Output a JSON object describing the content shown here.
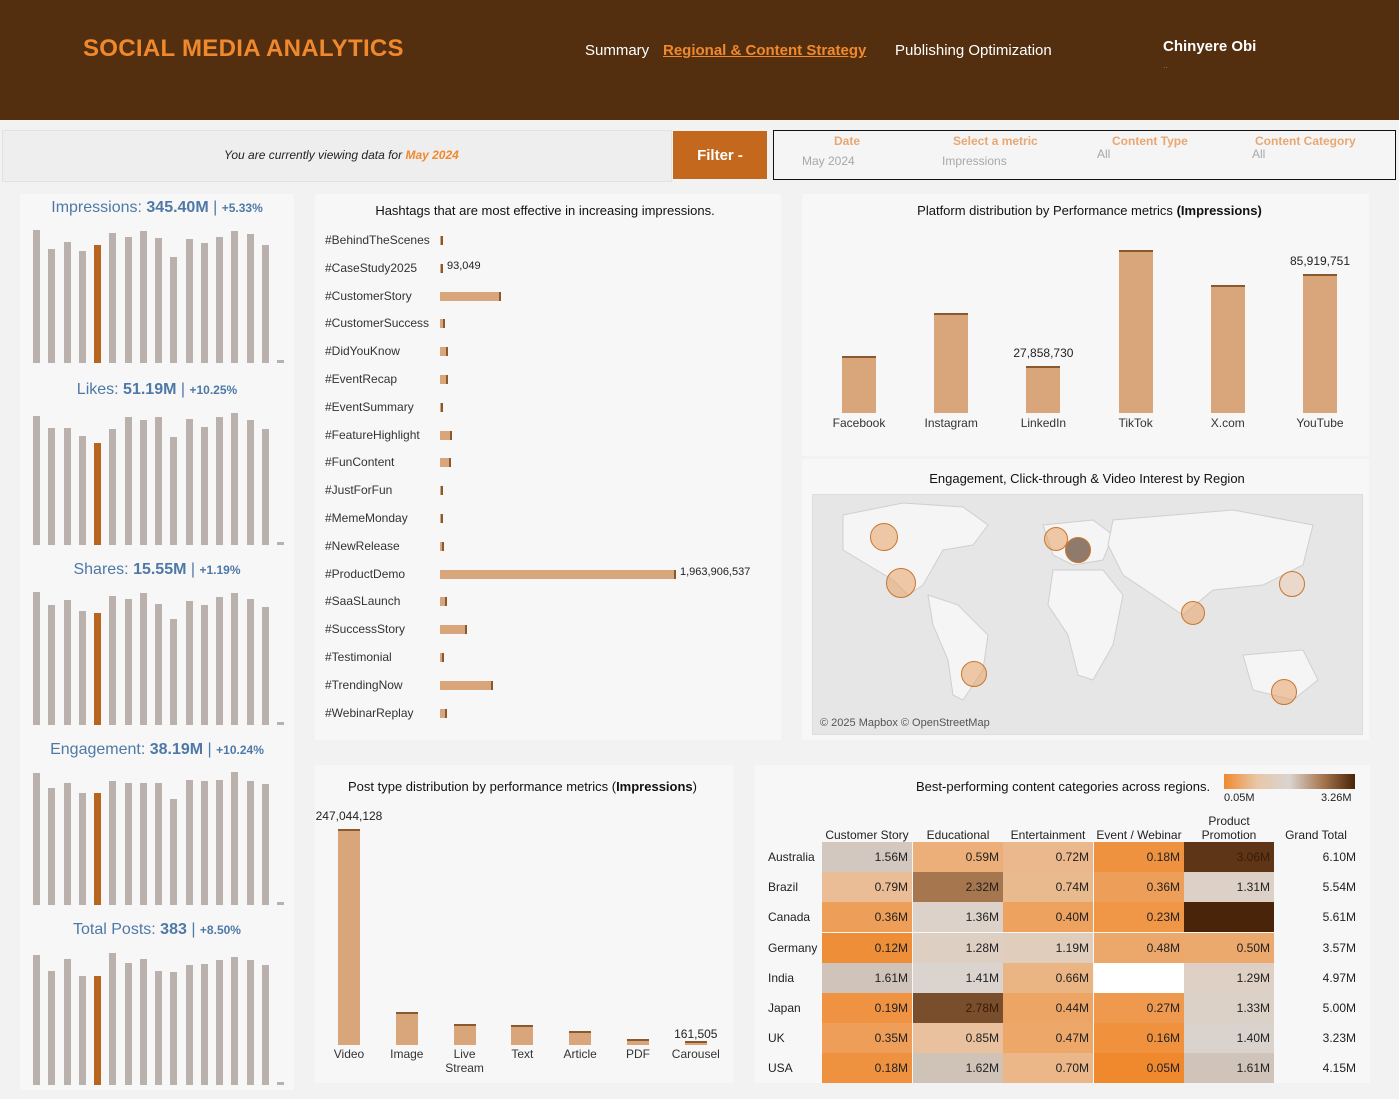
{
  "header": {
    "title": "SOCIAL MEDIA ANALYTICS",
    "nav": [
      "Summary",
      "Regional & Content Strategy",
      "Publishing Optimization"
    ],
    "active_nav": 1,
    "user_name": "Chinyere  Obi",
    "user_sub": ".."
  },
  "filters": {
    "viewing_prefix": "You are currently viewing data for",
    "viewing_period": "May 2024",
    "filter_button": "Filter -",
    "date_label": "Date",
    "date_value": "May 2024",
    "metric_label": "Select a metric",
    "metric_value": "Impressions",
    "content_type_label": "Content Type",
    "content_type_value": "All",
    "content_category_label": "Content Category",
    "content_category_value": "All"
  },
  "kpis": [
    {
      "label": "Impressions:",
      "value": "345.40M",
      "change": "+5.33%",
      "bars": [
        100,
        86,
        91,
        84,
        89,
        98,
        95,
        99,
        94,
        80,
        93,
        90,
        95,
        99,
        97,
        89,
        2
      ],
      "highlight": 4
    },
    {
      "label": "Likes:",
      "value": "51.19M",
      "change": "+10.25%",
      "bars": [
        97,
        88,
        88,
        82,
        77,
        87,
        96,
        94,
        96,
        81,
        95,
        89,
        96,
        99,
        94,
        87,
        2
      ],
      "highlight": 4
    },
    {
      "label": "Shares:",
      "value": "15.55M",
      "change": "+1.19%",
      "bars": [
        100,
        90,
        94,
        86,
        84,
        97,
        95,
        99,
        91,
        80,
        93,
        90,
        96,
        99,
        95,
        89,
        2
      ],
      "highlight": 4
    },
    {
      "label": "Engagement:",
      "value": "38.19M",
      "change": "+10.24%",
      "bars": [
        99,
        88,
        92,
        84,
        84,
        93,
        92,
        92,
        92,
        80,
        94,
        93,
        94,
        100,
        93,
        91,
        2
      ],
      "highlight": 4
    },
    {
      "label": "Total Posts:",
      "value": "383",
      "change": "+8.50%",
      "bars": [
        98,
        86,
        95,
        82,
        82,
        99,
        92,
        95,
        86,
        85,
        90,
        91,
        94,
        96,
        94,
        90,
        2
      ],
      "highlight": 4
    }
  ],
  "hashtags": {
    "title": "Hashtags that are most effective in increasing impressions.",
    "items": [
      {
        "tag": "#BehindTheScenes",
        "value": 2500000,
        "label": ""
      },
      {
        "tag": "#CaseStudy2025",
        "value": 93049,
        "label": "93,049"
      },
      {
        "tag": "#CustomerStory",
        "value": 495000000,
        "label": ""
      },
      {
        "tag": "#CustomerSuccess",
        "value": 24000000,
        "label": ""
      },
      {
        "tag": "#DidYouKnow",
        "value": 48000000,
        "label": ""
      },
      {
        "tag": "#EventRecap",
        "value": 48000000,
        "label": ""
      },
      {
        "tag": "#EventSummary",
        "value": 10000000,
        "label": ""
      },
      {
        "tag": "#FeatureHighlight",
        "value": 82000000,
        "label": ""
      },
      {
        "tag": "#FunContent",
        "value": 78000000,
        "label": ""
      },
      {
        "tag": "#JustForFun",
        "value": 3000000,
        "label": ""
      },
      {
        "tag": "#MemeMonday",
        "value": 12000000,
        "label": ""
      },
      {
        "tag": "#NewRelease",
        "value": 14000000,
        "label": ""
      },
      {
        "tag": "#ProductDemo",
        "value": 1963906537,
        "label": "1,963,906,537"
      },
      {
        "tag": "#SaaSLaunch",
        "value": 45000000,
        "label": ""
      },
      {
        "tag": "#SuccessStory",
        "value": 210000000,
        "label": ""
      },
      {
        "tag": "#Testimonial",
        "value": 14000000,
        "label": ""
      },
      {
        "tag": "#TrendingNow",
        "value": 424000000,
        "label": ""
      },
      {
        "tag": "#WebinarReplay",
        "value": 45000000,
        "label": ""
      }
    ]
  },
  "chart_data": [
    {
      "type": "bar",
      "title": "Platform distribution by Performance metrics",
      "title_bold": "(Impressions)",
      "categories": [
        "Facebook",
        "Instagram",
        "LinkedIn",
        "TikTok",
        "X.com",
        "YouTube"
      ],
      "values": [
        34500000,
        61000000,
        27858730,
        100500000,
        79000000,
        85919751
      ],
      "labels": [
        "",
        "",
        "27,858,730",
        "",
        "",
        "85,919,751"
      ]
    },
    {
      "type": "bar",
      "title": "Post type distribution by performance metrics (",
      "title_bold": "Impressions",
      "title_end": ")",
      "categories": [
        "Video",
        "Image",
        "Live\nStream",
        "Text",
        "Article",
        "PDF",
        "Carousel"
      ],
      "values": [
        247044128,
        36000000,
        21500000,
        20500000,
        13500000,
        4200000,
        161505
      ],
      "labels": [
        "247,044,128",
        "",
        "",
        "",
        "",
        "",
        "161,505"
      ]
    },
    {
      "type": "heatmap",
      "title": "Best-performing content categories across regions.",
      "legend_min": "0.05M",
      "legend_max": "3.26M",
      "columns": [
        "Customer Story",
        "Educational",
        "Entertainment",
        "Event / Webinar",
        "Product\nPromotion",
        "Grand Total"
      ],
      "rows": [
        {
          "region": "Australia",
          "cells": [
            "1.56M",
            "0.59M",
            "0.72M",
            "0.18M",
            "3.06M"
          ],
          "total": "6.10M"
        },
        {
          "region": "Brazil",
          "cells": [
            "0.79M",
            "2.32M",
            "0.74M",
            "0.36M",
            "1.31M"
          ],
          "total": "5.54M"
        },
        {
          "region": "Canada",
          "cells": [
            "0.36M",
            "1.36M",
            "0.40M",
            "0.23M",
            ""
          ],
          "total": "5.61M"
        },
        {
          "region": "Germany",
          "cells": [
            "0.12M",
            "1.28M",
            "1.19M",
            "0.48M",
            "0.50M"
          ],
          "total": "3.57M"
        },
        {
          "region": "India",
          "cells": [
            "1.61M",
            "1.41M",
            "0.66M",
            "",
            "1.29M"
          ],
          "total": "4.97M"
        },
        {
          "region": "Japan",
          "cells": [
            "0.19M",
            "2.78M",
            "0.44M",
            "0.27M",
            "1.33M"
          ],
          "total": "5.00M"
        },
        {
          "region": "UK",
          "cells": [
            "0.35M",
            "0.85M",
            "0.47M",
            "0.16M",
            "1.40M"
          ],
          "total": "3.23M"
        },
        {
          "region": "USA",
          "cells": [
            "0.18M",
            "1.62M",
            "0.70M",
            "0.05M",
            "1.61M"
          ],
          "total": "4.15M"
        }
      ],
      "fill_values": [
        [
          1.56,
          0.59,
          0.72,
          0.18,
          3.06
        ],
        [
          0.79,
          2.32,
          0.74,
          0.36,
          1.31
        ],
        [
          0.36,
          1.36,
          0.4,
          0.23,
          3.26
        ],
        [
          0.12,
          1.28,
          1.19,
          0.48,
          0.5
        ],
        [
          1.61,
          1.41,
          0.66,
          null,
          1.29
        ],
        [
          0.19,
          2.78,
          0.44,
          0.27,
          1.33
        ],
        [
          0.35,
          0.85,
          0.47,
          0.16,
          1.4
        ],
        [
          0.18,
          1.62,
          0.7,
          0.05,
          1.61
        ]
      ]
    }
  ],
  "map": {
    "title": "Engagement, Click-through & Video Interest by Region",
    "attribution": "© 2025 Mapbox  © OpenStreetMap",
    "regions": [
      "Canada",
      "USA",
      "UK",
      "Germany",
      "Brazil",
      "India",
      "Japan",
      "Australia"
    ]
  },
  "colors": {
    "header_bg": "#532f10",
    "accent": "#f0892e",
    "bar_fill": "#d9a57a",
    "kpi_bar": "#bab0ac",
    "kpi_highlight": "#b7651f",
    "kpi_text": "#4e79a7"
  }
}
